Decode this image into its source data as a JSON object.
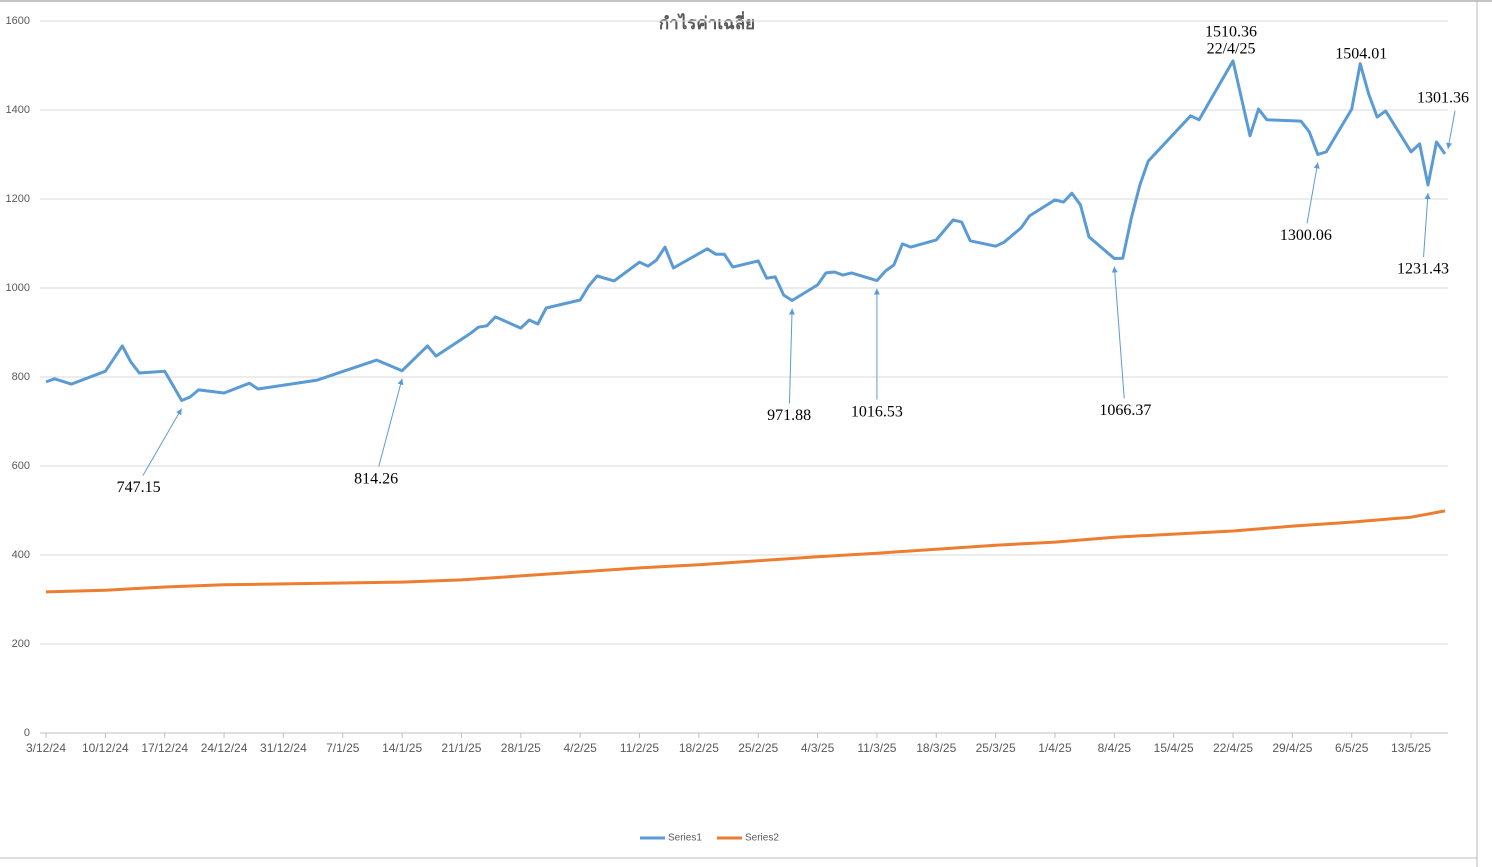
{
  "chart_data": {
    "type": "line",
    "title": "กำไรค่าเฉลี่ย",
    "ylim": [
      0,
      1600
    ],
    "yticks": [
      0,
      200,
      400,
      600,
      800,
      1000,
      1200,
      1400,
      1600
    ],
    "grid": true,
    "xlim": [
      "2024-12-03",
      "2025-05-17"
    ],
    "xticks": [
      {
        "value": "2024-12-03",
        "label": "3/12/24"
      },
      {
        "value": "2024-12-10",
        "label": "10/12/24"
      },
      {
        "value": "2024-12-17",
        "label": "17/12/24"
      },
      {
        "value": "2024-12-24",
        "label": "24/12/24"
      },
      {
        "value": "2024-12-31",
        "label": "31/12/24"
      },
      {
        "value": "2025-01-07",
        "label": "7/1/25"
      },
      {
        "value": "2025-01-14",
        "label": "14/1/25"
      },
      {
        "value": "2025-01-21",
        "label": "21/1/25"
      },
      {
        "value": "2025-01-28",
        "label": "28/1/25"
      },
      {
        "value": "2025-02-04",
        "label": "4/2/25"
      },
      {
        "value": "2025-02-11",
        "label": "11/2/25"
      },
      {
        "value": "2025-02-18",
        "label": "18/2/25"
      },
      {
        "value": "2025-02-25",
        "label": "25/2/25"
      },
      {
        "value": "2025-03-04",
        "label": "4/3/25"
      },
      {
        "value": "2025-03-11",
        "label": "11/3/25"
      },
      {
        "value": "2025-03-18",
        "label": "18/3/25"
      },
      {
        "value": "2025-03-25",
        "label": "25/3/25"
      },
      {
        "value": "2025-04-01",
        "label": "1/4/25"
      },
      {
        "value": "2025-04-08",
        "label": "8/4/25"
      },
      {
        "value": "2025-04-15",
        "label": "15/4/25"
      },
      {
        "value": "2025-04-22",
        "label": "22/4/25"
      },
      {
        "value": "2025-04-29",
        "label": "29/4/25"
      },
      {
        "value": "2025-05-06",
        "label": "6/5/25"
      },
      {
        "value": "2025-05-13",
        "label": "13/5/25"
      }
    ],
    "legend": "bottom",
    "series": [
      {
        "name": "Series1",
        "color": "#5b9bd5",
        "x": [
          "2024-12-03",
          "2024-12-04",
          "2024-12-06",
          "2024-12-10",
          "2024-12-12",
          "2024-12-13",
          "2024-12-14",
          "2024-12-17",
          "2024-12-19",
          "2024-12-20",
          "2024-12-21",
          "2024-12-24",
          "2024-12-27",
          "2024-12-28",
          "2025-01-04",
          "2025-01-11",
          "2025-01-14",
          "2025-01-17",
          "2025-01-18",
          "2025-01-22",
          "2025-01-23",
          "2025-01-24",
          "2025-01-25",
          "2025-01-28",
          "2025-01-29",
          "2025-01-30",
          "2025-01-31",
          "2025-02-04",
          "2025-02-05",
          "2025-02-06",
          "2025-02-08",
          "2025-02-11",
          "2025-02-12",
          "2025-02-13",
          "2025-02-14",
          "2025-02-15",
          "2025-02-19",
          "2025-02-20",
          "2025-02-21",
          "2025-02-22",
          "2025-02-25",
          "2025-02-26",
          "2025-02-27",
          "2025-02-28",
          "2025-03-01",
          "2025-03-04",
          "2025-03-05",
          "2025-03-06",
          "2025-03-07",
          "2025-03-08",
          "2025-03-11",
          "2025-03-12",
          "2025-03-13",
          "2025-03-14",
          "2025-03-15",
          "2025-03-18",
          "2025-03-20",
          "2025-03-21",
          "2025-03-22",
          "2025-03-25",
          "2025-03-26",
          "2025-03-28",
          "2025-03-29",
          "2025-04-01",
          "2025-04-02",
          "2025-04-03",
          "2025-04-04",
          "2025-04-05",
          "2025-04-08",
          "2025-04-09",
          "2025-04-10",
          "2025-04-11",
          "2025-04-12",
          "2025-04-17",
          "2025-04-18",
          "2025-04-22",
          "2025-04-24",
          "2025-04-25",
          "2025-04-26",
          "2025-04-30",
          "2025-05-01",
          "2025-05-02",
          "2025-05-03",
          "2025-05-06",
          "2025-05-07",
          "2025-05-08",
          "2025-05-09",
          "2025-05-10",
          "2025-05-13",
          "2025-05-14",
          "2025-05-15",
          "2025-05-16",
          "2025-05-17"
        ],
        "values": [
          789,
          796,
          784,
          813,
          870,
          834,
          809,
          813,
          747.15,
          755,
          771,
          764,
          786,
          773,
          793,
          838,
          814.26,
          870,
          847,
          897,
          912,
          915,
          935,
          910,
          928,
          919,
          955,
          973,
          1004,
          1027,
          1016,
          1058,
          1049,
          1063,
          1092,
          1045,
          1088,
          1076,
          1076,
          1047,
          1061,
          1022,
          1025,
          984,
          971.88,
          1007,
          1034,
          1036,
          1029,
          1034,
          1016.53,
          1038,
          1052,
          1099,
          1092,
          1108,
          1153,
          1148,
          1106,
          1094,
          1103,
          1135,
          1162,
          1198,
          1193,
          1213,
          1187,
          1115,
          1066.37,
          1067,
          1157,
          1231,
          1285,
          1387,
          1378,
          1510.36,
          1342,
          1402,
          1378,
          1375,
          1351,
          1300.06,
          1306,
          1402,
          1504.01,
          1436,
          1384,
          1398,
          1306,
          1324,
          1231.43,
          1328,
          1301.36
        ]
      },
      {
        "name": "Series2",
        "color": "#ed7d31",
        "x": [
          "2024-12-03",
          "2024-12-10",
          "2024-12-17",
          "2024-12-24",
          "2024-12-31",
          "2025-01-07",
          "2025-01-14",
          "2025-01-21",
          "2025-01-28",
          "2025-02-04",
          "2025-02-11",
          "2025-02-18",
          "2025-02-25",
          "2025-03-04",
          "2025-03-11",
          "2025-03-18",
          "2025-03-25",
          "2025-04-01",
          "2025-04-08",
          "2025-04-15",
          "2025-04-22",
          "2025-04-29",
          "2025-05-06",
          "2025-05-13",
          "2025-05-17"
        ],
        "values": [
          317,
          321,
          328,
          333,
          335,
          337,
          339,
          344,
          353,
          362,
          371,
          378,
          387,
          396,
          404,
          413,
          422,
          429,
          440,
          447,
          454,
          465,
          474,
          485,
          499
        ]
      }
    ],
    "annotations": [
      {
        "label": "747.15",
        "x": "2024-12-19",
        "y": 747.15
      },
      {
        "label": "814.26",
        "x": "2025-01-14",
        "y": 814.26
      },
      {
        "label": "971.88",
        "x": "2025-03-01",
        "y": 971.88
      },
      {
        "label": "1016.53",
        "x": "2025-03-11",
        "y": 1016.53
      },
      {
        "label": "1066.37",
        "x": "2025-04-08",
        "y": 1066.37
      },
      {
        "label": "1510.36",
        "date_label": "22/4/25",
        "x": "2025-04-22",
        "y": 1510.36
      },
      {
        "label": "1504.01",
        "x": "2025-05-07",
        "y": 1504.01
      },
      {
        "label": "1300.06",
        "x": "2025-05-02",
        "y": 1300.06
      },
      {
        "label": "1231.43",
        "x": "2025-05-15",
        "y": 1231.43
      },
      {
        "label": "1301.36",
        "x": "2025-05-17",
        "y": 1301.36
      }
    ]
  }
}
